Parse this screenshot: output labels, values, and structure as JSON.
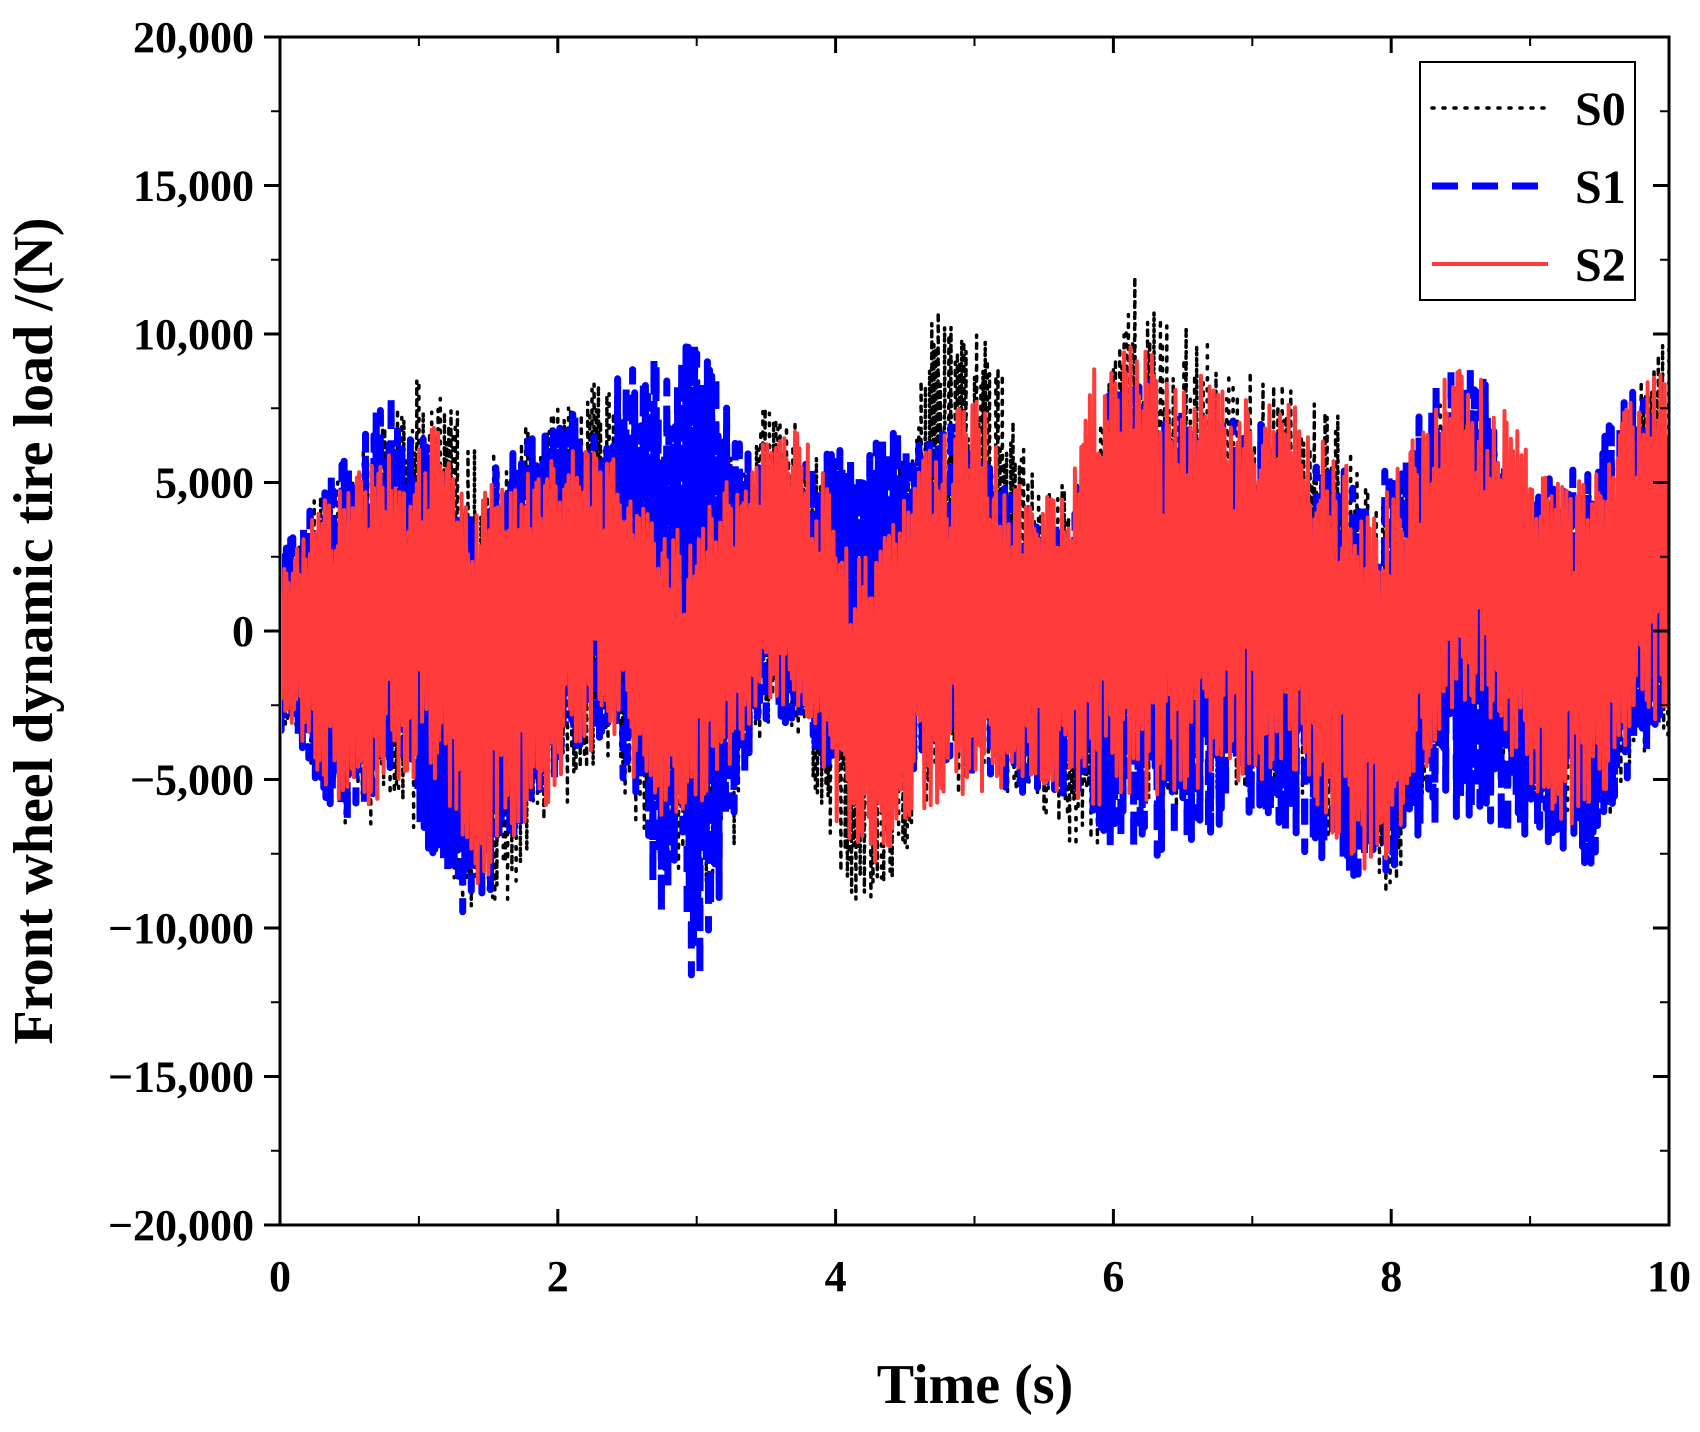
{
  "chart_data": {
    "type": "line",
    "title": "",
    "xlabel": "Time (s)",
    "ylabel": "Front wheel dynamic tire load /(N)",
    "xlim": [
      0,
      10
    ],
    "ylim": [
      -20000,
      20000
    ],
    "x_ticks": [
      0,
      2,
      4,
      6,
      8,
      10
    ],
    "x_tick_labels": [
      "0",
      "2",
      "4",
      "6",
      "8",
      "10"
    ],
    "y_ticks": [
      -20000,
      -15000,
      -10000,
      -5000,
      0,
      5000,
      10000,
      15000,
      20000
    ],
    "y_tick_labels": [
      "−20,000",
      "−15,000",
      "−10,000",
      "−5,000",
      "0",
      "5,000",
      "10,000",
      "15,000",
      "20,000"
    ],
    "grid": false,
    "legend_position": "top-right",
    "series": [
      {
        "name": "S0",
        "style": "dotted",
        "color": "#000000",
        "peaks": [
          {
            "t": 0.0,
            "max": 3000,
            "min": -3500
          },
          {
            "t": 0.5,
            "max": 6000,
            "min": -6500
          },
          {
            "t": 1.1,
            "max": 9000,
            "min": -7000
          },
          {
            "t": 1.45,
            "max": 6000,
            "min": -10600
          },
          {
            "t": 2.0,
            "max": 7500,
            "min": -6000
          },
          {
            "t": 2.3,
            "max": 8600,
            "min": -4500
          },
          {
            "t": 2.8,
            "max": 4000,
            "min": -8000
          },
          {
            "t": 3.1,
            "max": 6000,
            "min": -8700
          },
          {
            "t": 3.6,
            "max": 7800,
            "min": -3000
          },
          {
            "t": 4.2,
            "max": 3000,
            "min": -9200
          },
          {
            "t": 4.8,
            "max": 11000,
            "min": -6000
          },
          {
            "t": 5.0,
            "max": 10700,
            "min": -5000
          },
          {
            "t": 5.5,
            "max": 5000,
            "min": -6500
          },
          {
            "t": 5.8,
            "max": 5500,
            "min": -8000
          },
          {
            "t": 6.1,
            "max": 12400,
            "min": -5500
          },
          {
            "t": 6.4,
            "max": 10500,
            "min": -6000
          },
          {
            "t": 7.2,
            "max": 8500,
            "min": -5500
          },
          {
            "t": 7.6,
            "max": 7300,
            "min": -7000
          },
          {
            "t": 7.9,
            "max": 4500,
            "min": -9200
          },
          {
            "t": 8.5,
            "max": 8700,
            "min": -3000
          },
          {
            "t": 9.0,
            "max": 4500,
            "min": -5500
          },
          {
            "t": 9.5,
            "max": 5000,
            "min": -6500
          },
          {
            "t": 9.95,
            "max": 11000,
            "min": -3500
          }
        ]
      },
      {
        "name": "S1",
        "style": "dashed",
        "color": "#0000ff",
        "peaks": [
          {
            "t": 0.0,
            "max": 3000,
            "min": -3500
          },
          {
            "t": 0.5,
            "max": 6000,
            "min": -6500
          },
          {
            "t": 0.8,
            "max": 8200,
            "min": -5000
          },
          {
            "t": 1.3,
            "max": 5000,
            "min": -9800
          },
          {
            "t": 2.0,
            "max": 7000,
            "min": -5000
          },
          {
            "t": 2.3,
            "max": 8800,
            "min": -4000
          },
          {
            "t": 3.0,
            "max": 9800,
            "min": -11800
          },
          {
            "t": 3.5,
            "max": 5500,
            "min": -3000
          },
          {
            "t": 4.2,
            "max": 6500,
            "min": -5500
          },
          {
            "t": 4.7,
            "max": 7500,
            "min": -5000
          },
          {
            "t": 5.5,
            "max": 4000,
            "min": -5500
          },
          {
            "t": 6.1,
            "max": 8500,
            "min": -7800
          },
          {
            "t": 7.0,
            "max": 7200,
            "min": -6500
          },
          {
            "t": 7.8,
            "max": 5500,
            "min": -8600
          },
          {
            "t": 8.6,
            "max": 9500,
            "min": -6500
          },
          {
            "t": 8.9,
            "max": 5000,
            "min": -7000
          },
          {
            "t": 9.4,
            "max": 6000,
            "min": -8000
          },
          {
            "t": 9.7,
            "max": 8200,
            "min": -5000
          },
          {
            "t": 10.0,
            "max": 7000,
            "min": -3500
          }
        ]
      },
      {
        "name": "S2",
        "style": "solid",
        "color": "#ff3b3b",
        "peaks": [
          {
            "t": 0.0,
            "max": 2500,
            "min": -3000
          },
          {
            "t": 0.5,
            "max": 5500,
            "min": -6000
          },
          {
            "t": 1.1,
            "max": 7100,
            "min": -5000
          },
          {
            "t": 1.45,
            "max": 5000,
            "min": -8600
          },
          {
            "t": 2.3,
            "max": 6200,
            "min": -4000
          },
          {
            "t": 2.8,
            "max": 3500,
            "min": -6500
          },
          {
            "t": 3.7,
            "max": 7000,
            "min": -2500
          },
          {
            "t": 4.2,
            "max": 2500,
            "min": -8500
          },
          {
            "t": 4.9,
            "max": 8200,
            "min": -5500
          },
          {
            "t": 5.5,
            "max": 4500,
            "min": -5500
          },
          {
            "t": 6.0,
            "max": 9800,
            "min": -6000
          },
          {
            "t": 7.2,
            "max": 7800,
            "min": -5000
          },
          {
            "t": 7.9,
            "max": 5000,
            "min": -8200
          },
          {
            "t": 8.5,
            "max": 8800,
            "min": -2500
          },
          {
            "t": 9.3,
            "max": 5000,
            "min": -6500
          },
          {
            "t": 9.95,
            "max": 8800,
            "min": -3000
          }
        ]
      }
    ]
  }
}
